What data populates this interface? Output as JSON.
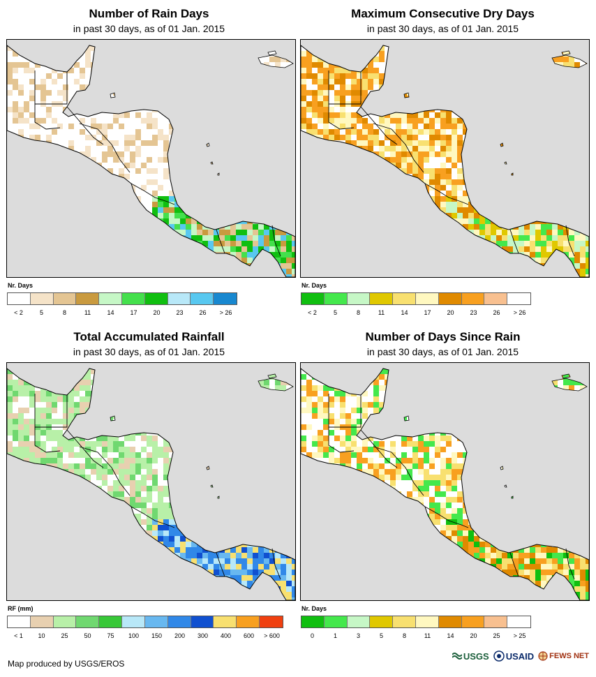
{
  "panels": [
    {
      "id": "rain-days",
      "title": "Number of Rain Days",
      "subtitle": "in past 30 days, as of 01 Jan. 2015",
      "legend_label": "Nr. Days",
      "legend_colors": [
        "#ffffff",
        "#f5e3c8",
        "#e4c593",
        "#c99a3f",
        "#c6f7c6",
        "#44e04c",
        "#10bf10",
        "#b8e8f8",
        "#58c8f0",
        "#1888d0"
      ],
      "legend_ticks": [
        "< 2",
        "5",
        "8",
        "11",
        "14",
        "17",
        "20",
        "23",
        "26",
        "> 26"
      ],
      "palette_main": [
        "#ffffff",
        "#ffffff",
        "#ffffff",
        "#f5e3c8",
        "#e4c593"
      ],
      "palette_wet": [
        "#c99a3f",
        "#e4c593",
        "#c6f7c6",
        "#44e04c",
        "#10bf10",
        "#58c8f0"
      ]
    },
    {
      "id": "dry-days",
      "title": "Maximum Consecutive Dry Days",
      "subtitle": "in past 30 days, as of 01 Jan. 2015",
      "legend_label": "Nr. Days",
      "legend_colors": [
        "#10bf10",
        "#44e84c",
        "#c6f7c6",
        "#e0c800",
        "#f8e070",
        "#fff8c0",
        "#e08a00",
        "#f8a020",
        "#f8c090",
        "#ffffff"
      ],
      "legend_ticks": [
        "< 2",
        "5",
        "8",
        "11",
        "14",
        "17",
        "20",
        "23",
        "26",
        "> 26"
      ],
      "palette_main": [
        "#e08a00",
        "#f8a020",
        "#f8a020",
        "#fff8c0",
        "#ffffff",
        "#f8e070"
      ],
      "palette_wet": [
        "#f8e070",
        "#fff8c0",
        "#e0c800",
        "#c6f7c6",
        "#44e84c",
        "#e08a00"
      ]
    },
    {
      "id": "rainfall",
      "title": "Total Accumulated Rainfall",
      "subtitle": "in past 30 days, as of 01 Jan. 2015",
      "legend_label": "RF (mm)",
      "legend_colors": [
        "#ffffff",
        "#e8d0b0",
        "#b8f0a8",
        "#70d870",
        "#38c838",
        "#b8e8f8",
        "#68b8f0",
        "#3088e8",
        "#1050d0",
        "#f8e070",
        "#f8a020",
        "#f04010"
      ],
      "legend_ticks": [
        "< 1",
        "10",
        "25",
        "50",
        "75",
        "100",
        "150",
        "200",
        "300",
        "400",
        "600",
        "> 600"
      ],
      "palette_main": [
        "#b8f0a8",
        "#b8f0a8",
        "#ffffff",
        "#e8d0b0",
        "#70d870"
      ],
      "palette_wet": [
        "#3088e8",
        "#68b8f0",
        "#1050d0",
        "#b8e8f8",
        "#3088e8",
        "#f8e070"
      ]
    },
    {
      "id": "days-since-rain",
      "title": "Number of Days Since Rain",
      "subtitle": "in past 30 days, as of 01 Jan. 2015",
      "legend_label": "Nr. Days",
      "legend_colors": [
        "#10bf10",
        "#44e84c",
        "#c6f7c6",
        "#e0c800",
        "#f8e070",
        "#fff8c0",
        "#e08a00",
        "#f8a020",
        "#f8c090",
        "#ffffff"
      ],
      "legend_ticks": [
        "0",
        "1",
        "3",
        "5",
        "8",
        "11",
        "14",
        "20",
        "25",
        "> 25"
      ],
      "palette_main": [
        "#ffffff",
        "#fff8c0",
        "#f8e070",
        "#f8a020",
        "#44e84c",
        "#ffffff"
      ],
      "palette_wet": [
        "#10bf10",
        "#44e84c",
        "#f8e070",
        "#fff8c0",
        "#f8a020",
        "#e08a00"
      ]
    }
  ],
  "footer": "Map produced by USGS/EROS",
  "logos": {
    "usgs": "USGS",
    "usaid": "USAID",
    "fews": "FEWS NET"
  },
  "colors": {
    "background_gray": "#dcdcdc",
    "border": "#000000"
  }
}
